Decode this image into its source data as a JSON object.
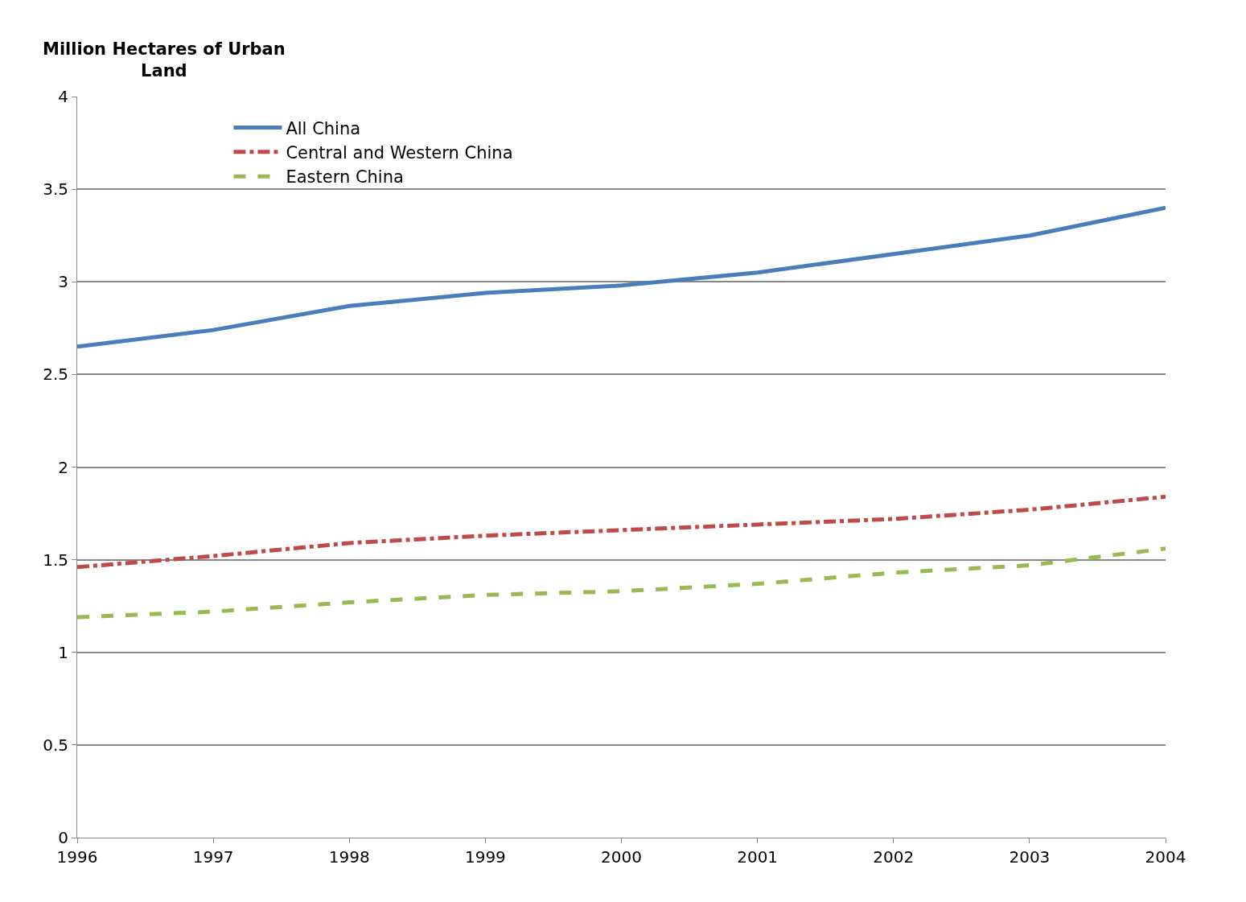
{
  "chart_data": {
    "type": "line",
    "ylabel": "Million Hectares of Urban Land",
    "x": [
      1996,
      1997,
      1998,
      1999,
      2000,
      2001,
      2002,
      2003,
      2004
    ],
    "xlim": [
      1996,
      2004
    ],
    "xticks": [
      1996,
      1997,
      1998,
      1999,
      2000,
      2001,
      2002,
      2003,
      2004
    ],
    "ylim": [
      0,
      4
    ],
    "yticks": [
      0,
      0.5,
      1,
      1.5,
      2,
      2.5,
      3,
      3.5,
      4
    ],
    "grid": "y",
    "legend": "top left",
    "marker": "none",
    "series": [
      {
        "name": "All China",
        "color": "#4a7ebb",
        "line_style": "solid",
        "values": [
          2.65,
          2.74,
          2.87,
          2.94,
          2.98,
          3.05,
          3.15,
          3.25,
          3.4
        ]
      },
      {
        "name": "Central and Western China",
        "color": "#be4b48",
        "line_style": "dashdot",
        "values": [
          1.46,
          1.52,
          1.59,
          1.63,
          1.66,
          1.69,
          1.72,
          1.77,
          1.84
        ]
      },
      {
        "name": "Eastern China",
        "color": "#98b954",
        "line_style": "dashed",
        "values": [
          1.19,
          1.22,
          1.27,
          1.31,
          1.33,
          1.37,
          1.43,
          1.47,
          1.56
        ]
      }
    ]
  }
}
